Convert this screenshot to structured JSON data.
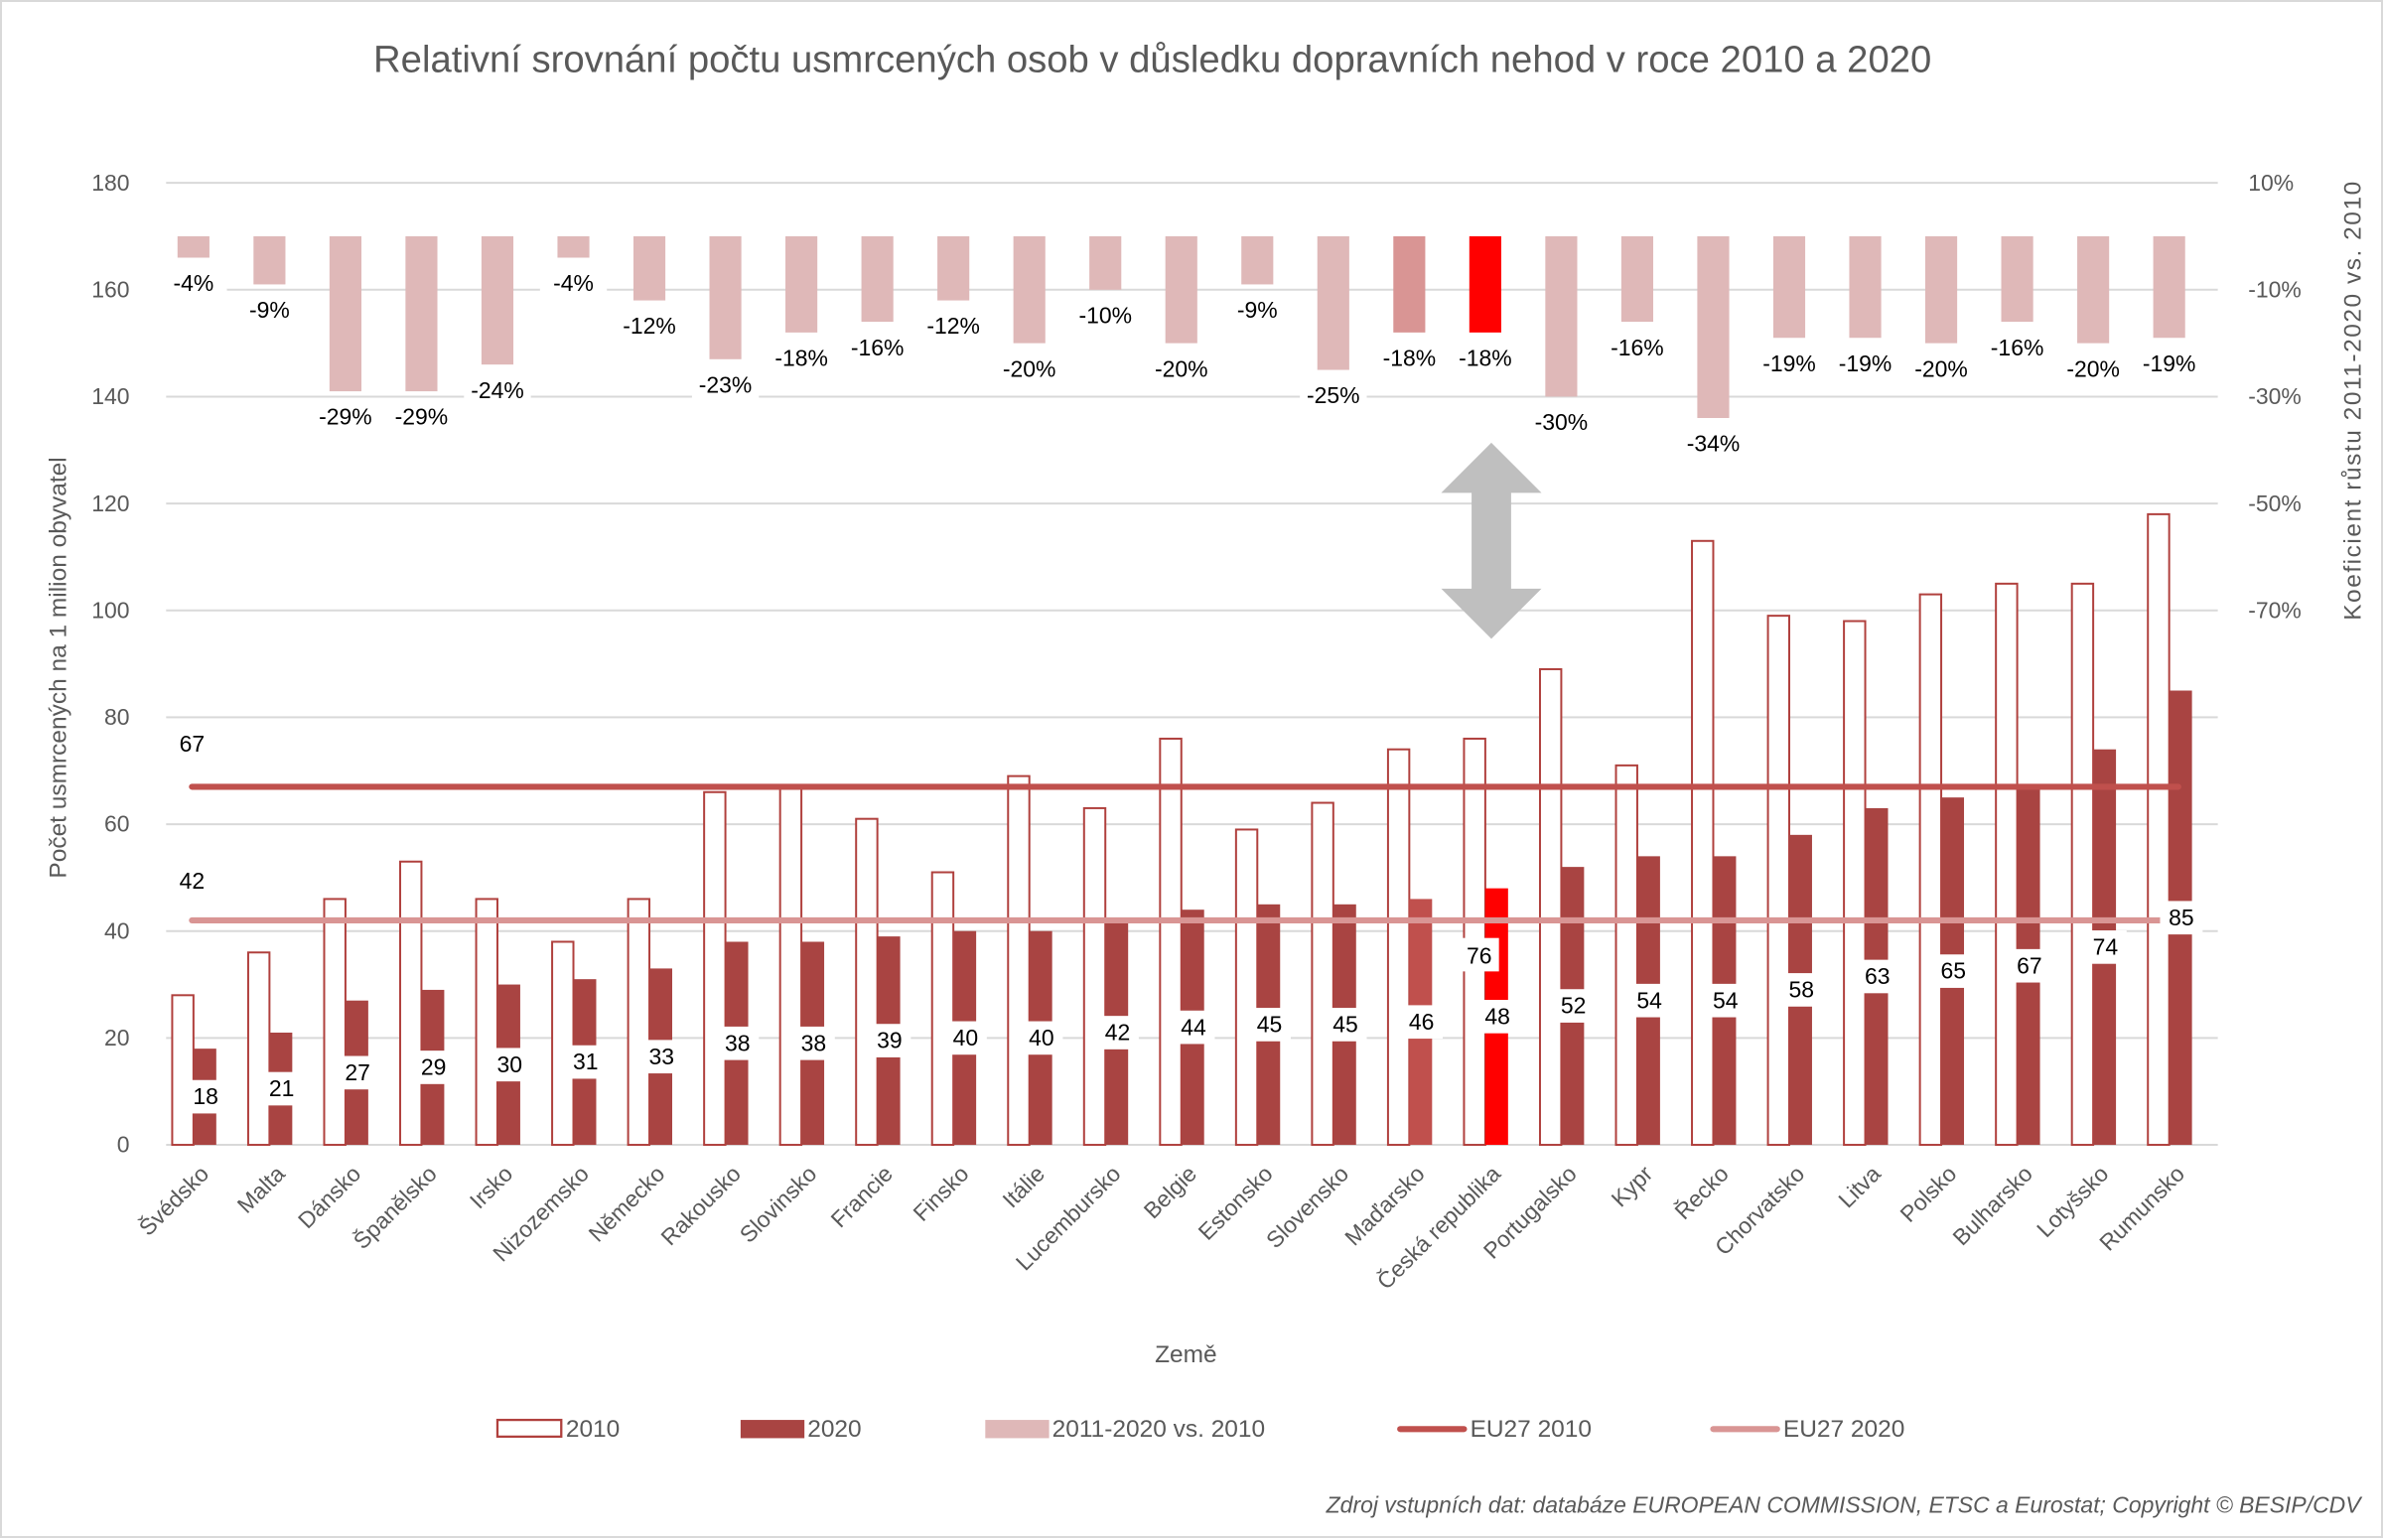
{
  "chart_data": {
    "type": "bar",
    "title": "Relativní srovnání počtu usmrcených osob v důsledku dopravních nehod v roce 2010 a 2020",
    "xlabel": "Země",
    "ylabel": "Počet usmrcených na 1 milion obyvatel",
    "ylabel_right": "Koeficient růstu 2011-2020 vs. 2010",
    "ylim": [
      0,
      180
    ],
    "yticks": [
      0,
      20,
      40,
      60,
      80,
      100,
      120,
      140,
      160,
      180
    ],
    "yticks_right": [
      "10%",
      "-10%",
      "-30%",
      "-50%",
      "-70%"
    ],
    "grid": true,
    "legend_position": "bottom",
    "categories": [
      "Švédsko",
      "Malta",
      "Dánsko",
      "Španělsko",
      "Irsko",
      "Nizozemsko",
      "Německo",
      "Rakousko",
      "Slovinsko",
      "Francie",
      "Finsko",
      "Itálie",
      "Lucembursko",
      "Belgie",
      "Estonsko",
      "Slovensko",
      "Maďarsko",
      "Česká republika",
      "Portugalsko",
      "Kypr",
      "Řecko",
      "Chorvatsko",
      "Litva",
      "Polsko",
      "Bulharsko",
      "Lotyšsko",
      "Rumunsko"
    ],
    "series": [
      {
        "name": "2010",
        "type": "bar",
        "values": [
          28,
          36,
          46,
          53,
          46,
          38,
          46,
          66,
          67,
          61,
          51,
          69,
          63,
          76,
          59,
          64,
          74,
          76,
          89,
          71,
          113,
          99,
          98,
          103,
          105,
          105,
          118
        ]
      },
      {
        "name": "2020",
        "type": "bar",
        "values": [
          18,
          21,
          27,
          29,
          30,
          31,
          33,
          38,
          38,
          39,
          40,
          40,
          42,
          44,
          45,
          45,
          46,
          48,
          52,
          54,
          54,
          58,
          63,
          65,
          67,
          74,
          85
        ]
      },
      {
        "name": "2011-2020 vs. 2010",
        "type": "bar",
        "axis": "right",
        "unit": "%",
        "values": [
          -4,
          -9,
          -29,
          -29,
          -24,
          -4,
          -12,
          -23,
          -18,
          -16,
          -12,
          -20,
          -10,
          -20,
          -9,
          -25,
          -18,
          -18,
          -30,
          -16,
          -34,
          -19,
          -19,
          -20,
          -16,
          -20,
          -19
        ]
      },
      {
        "name": "EU27 2010",
        "type": "line",
        "value": 67
      },
      {
        "name": "EU27 2020",
        "type": "line",
        "value": 42
      }
    ],
    "labelled_2010": {
      "Česká republika": "76"
    },
    "highlight": {
      "Maďarsko": "#c0504d",
      "Česká republika": "#ff0000"
    }
  },
  "colors": {
    "c2010_stroke": "#b0403d",
    "c2020": "#a94442",
    "pct": "#dfb8b8",
    "eu2010": "#c0504d",
    "eu2020": "#d99594",
    "hu_pct": "#d99594",
    "arrow": "#bfbfbf"
  },
  "source": "Zdroj vstupních dat: databáze EUROPEAN COMMISSION, ETSC a Eurostat; Copyright © BESIP/CDV"
}
